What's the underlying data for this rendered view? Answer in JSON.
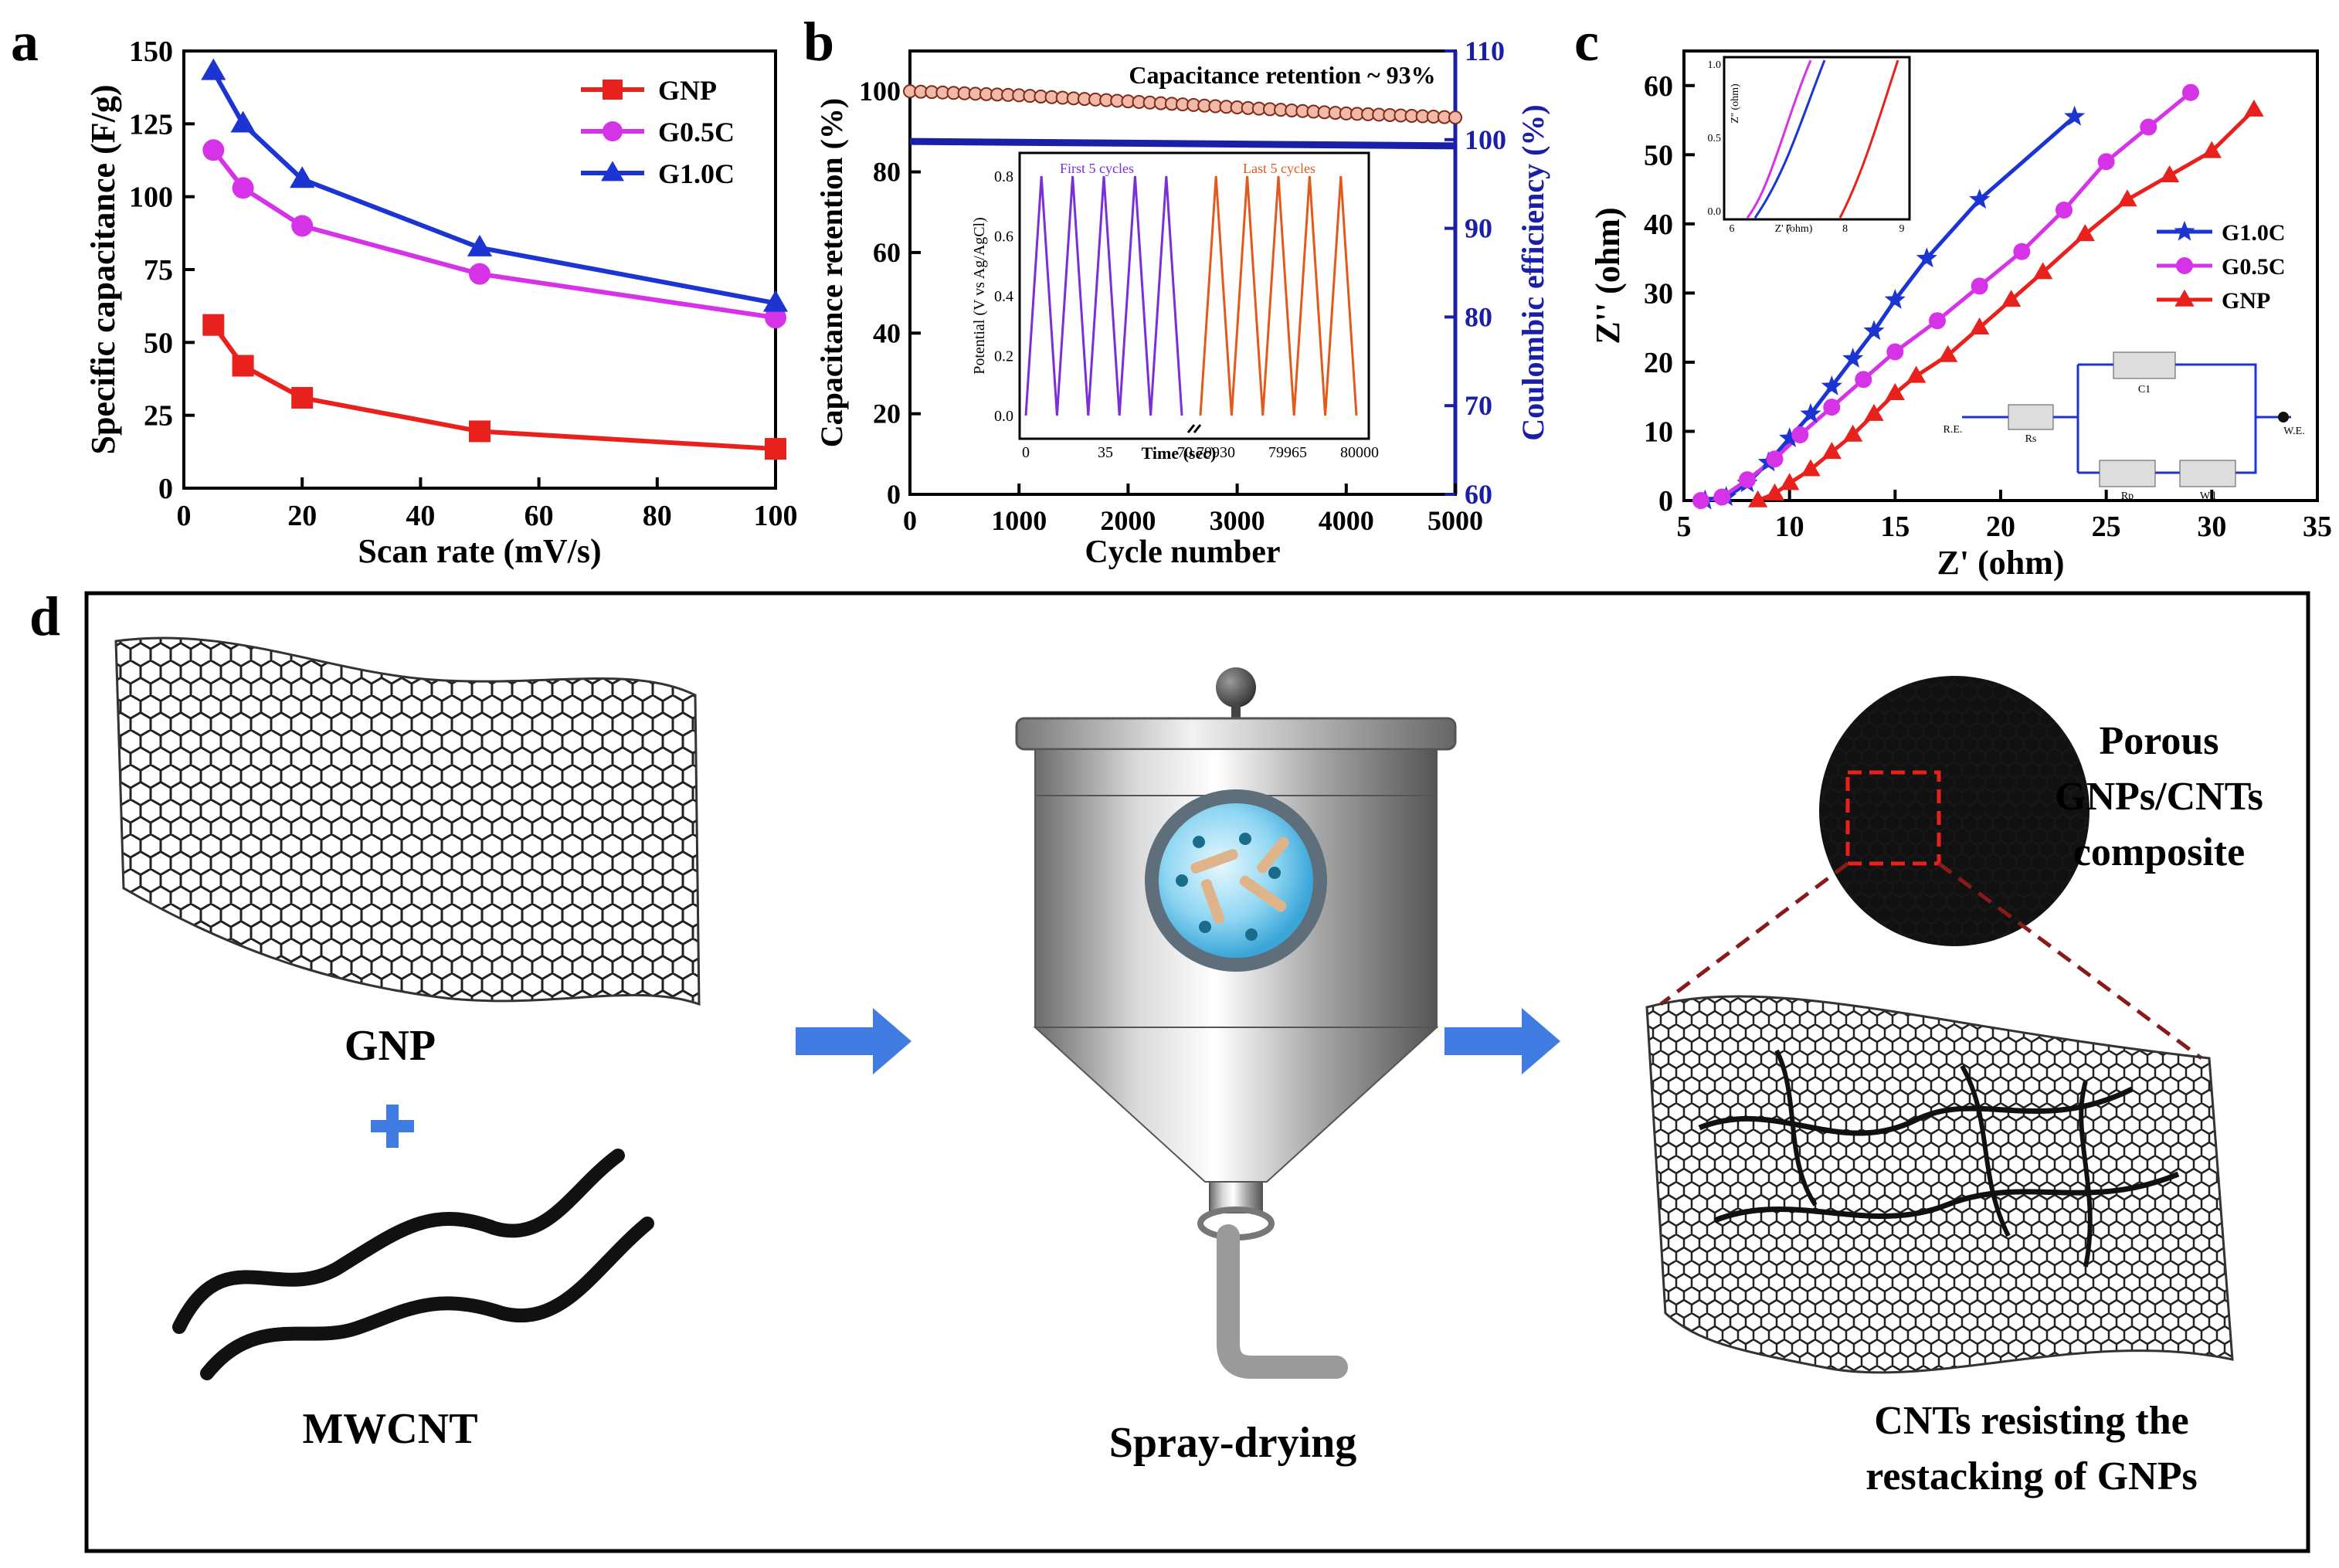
{
  "panel_labels": {
    "a": "a",
    "b": "b",
    "c": "c",
    "d": "d"
  },
  "colors": {
    "red": "#e8211c",
    "magenta": "#d633e8",
    "blue": "#1c35d2",
    "navy": "#1a1fa8",
    "purple": "#7b2fd6",
    "orange": "#e25a1c",
    "arrow": "#3f7be0"
  },
  "chart_data": [
    {
      "id": "a",
      "type": "line",
      "title": "",
      "xlabel": "Scan rate (mV/s)",
      "ylabel": "Specific capacitance (F/g)",
      "xlim": [
        0,
        100
      ],
      "ylim": [
        0,
        150
      ],
      "xticks": [
        "0",
        "20",
        "40",
        "60",
        "80",
        "100"
      ],
      "yticks": [
        "0",
        "25",
        "50",
        "75",
        "100",
        "125",
        "150"
      ],
      "legend_position": "top-right",
      "series": [
        {
          "name": "GNP",
          "marker": "square",
          "color": "#e8211c",
          "x": [
            5,
            10,
            20,
            50,
            100
          ],
          "y": [
            56,
            42,
            31,
            19.5,
            13.5
          ]
        },
        {
          "name": "G0.5C",
          "marker": "circle",
          "color": "#d633e8",
          "x": [
            5,
            10,
            20,
            50,
            100
          ],
          "y": [
            116,
            103,
            90,
            73.5,
            58.5
          ]
        },
        {
          "name": "G1.0C",
          "marker": "triangle",
          "color": "#1c35d2",
          "x": [
            5,
            10,
            20,
            50,
            100
          ],
          "y": [
            143,
            125,
            106,
            82.5,
            63.5
          ]
        }
      ]
    },
    {
      "id": "b",
      "type": "scatter",
      "xlabel": "Cycle number",
      "ylabel": "Capacitance retention (%)",
      "y2label": "Coulombic efficiency (%)",
      "xlim": [
        0,
        5000
      ],
      "ylim": [
        0,
        110
      ],
      "y2lim": [
        60,
        110
      ],
      "xticks": [
        "0",
        "1000",
        "2000",
        "3000",
        "4000",
        "5000"
      ],
      "yticks": [
        "0",
        "20",
        "40",
        "60",
        "80",
        "100"
      ],
      "y2ticks": [
        "60",
        "70",
        "80",
        "90",
        "100",
        "110"
      ],
      "annotation": "Capacitance retention ~ 93%",
      "series": [
        {
          "name": "Capacitance retention",
          "axis": "left",
          "color": "#e8211c",
          "x": [
            0,
            1000,
            2000,
            3000,
            4000,
            5000
          ],
          "y": [
            100,
            99,
            97.5,
            96,
            94.5,
            93.5
          ]
        },
        {
          "name": "Coulombic efficiency",
          "axis": "right",
          "color": "#1a1fa8",
          "x": [
            0,
            5000
          ],
          "y": [
            99.8,
            99.3
          ]
        }
      ],
      "inset": {
        "type": "line",
        "xlabel": "Time (sec)",
        "ylabel": "Potential (V vs Ag/AgCl)",
        "ylim": [
          0,
          0.8
        ],
        "yticks": [
          "0.0",
          "0.2",
          "0.4",
          "0.6",
          "0.8"
        ],
        "xticks_left": [
          "0",
          "35",
          "70"
        ],
        "xticks_right": [
          "79930",
          "79965",
          "80000"
        ],
        "label_first": "First 5 cycles",
        "label_last": "Last 5 cycles",
        "cycles_each": 5
      }
    },
    {
      "id": "c",
      "type": "line",
      "xlabel": "Z' (ohm)",
      "ylabel": "Z'' (ohm)",
      "xlim": [
        5,
        35
      ],
      "ylim": [
        0,
        65
      ],
      "xticks": [
        "5",
        "10",
        "15",
        "20",
        "25",
        "30",
        "35"
      ],
      "yticks": [
        "0",
        "10",
        "20",
        "30",
        "40",
        "50",
        "60"
      ],
      "legend_position": "right",
      "series": [
        {
          "name": "G1.0C",
          "marker": "star",
          "color": "#1c35d2",
          "x": [
            6,
            7,
            8,
            9,
            10,
            11,
            12,
            13,
            14,
            15,
            16.5,
            19,
            23.5
          ],
          "y": [
            0,
            0.5,
            2.5,
            5.5,
            9,
            12.5,
            16.5,
            20.5,
            24.5,
            29,
            35,
            43.5,
            55.5
          ]
        },
        {
          "name": "G0.5C",
          "marker": "circle",
          "color": "#d633e8",
          "x": [
            5.8,
            6.8,
            8,
            9.3,
            10.5,
            12,
            13.5,
            15,
            17,
            19,
            21,
            23,
            25,
            27,
            29
          ],
          "y": [
            0,
            0.5,
            3,
            6,
            9.5,
            13.5,
            17.5,
            21.5,
            26,
            31,
            36,
            42,
            49,
            54,
            59
          ]
        },
        {
          "name": "GNP",
          "marker": "triangle",
          "color": "#e8211c",
          "x": [
            8.5,
            9.3,
            10,
            11,
            12,
            13,
            14,
            15,
            16,
            17.5,
            19,
            20.5,
            22,
            24,
            26,
            28,
            30,
            32
          ],
          "y": [
            0,
            1,
            2.5,
            4.5,
            7,
            9.5,
            12.5,
            15.5,
            18,
            21,
            25,
            29,
            33,
            38.5,
            43.5,
            47,
            50.5,
            56.5
          ]
        }
      ],
      "inset": {
        "xlabel": "Z' (ohm)",
        "ylabel": "Z'' (ohm)",
        "yticks": [
          "0.0",
          "0.5",
          "1.0"
        ],
        "xticks": [
          "6",
          "7",
          "8",
          "9"
        ]
      },
      "circuit": {
        "labels": [
          "R.E.",
          "Rs",
          "C1",
          "Rp",
          "Wd",
          "W.E."
        ]
      }
    }
  ],
  "schematic": {
    "gnp_label": "GNP",
    "plus": "+",
    "mwcnt_label": "MWCNT",
    "spray_label": "Spray-drying",
    "composite_label_1": "Porous",
    "composite_label_2": "GNPs/CNTs",
    "composite_label_3": "composite",
    "cnt_label_1": "CNTs resisting the",
    "cnt_label_2": "restacking of GNPs"
  }
}
